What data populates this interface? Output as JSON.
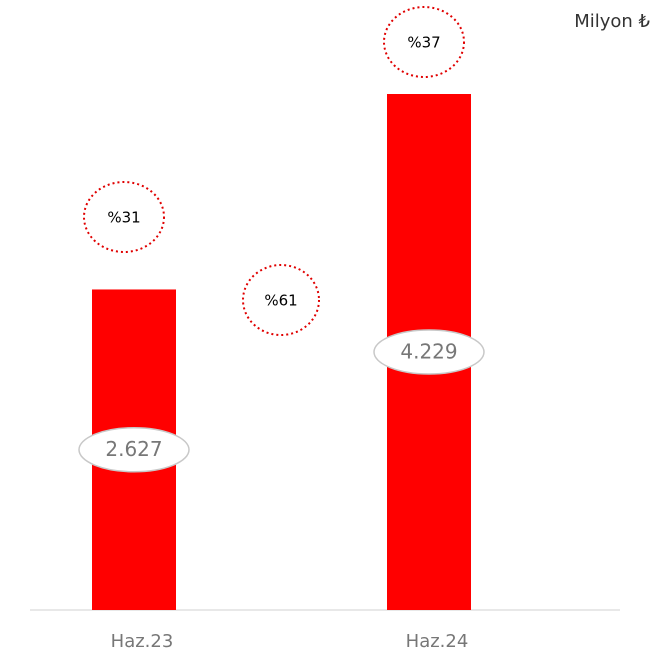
{
  "chart_data": {
    "type": "bar",
    "unit_label": "Milyon ₺",
    "categories": [
      "Haz.23",
      "Haz.24"
    ],
    "values": [
      2627,
      4229
    ],
    "value_labels": [
      "2.627",
      "4.229"
    ],
    "color": "#ff0000",
    "annotations": [
      "%31",
      "%61",
      "%37"
    ]
  }
}
